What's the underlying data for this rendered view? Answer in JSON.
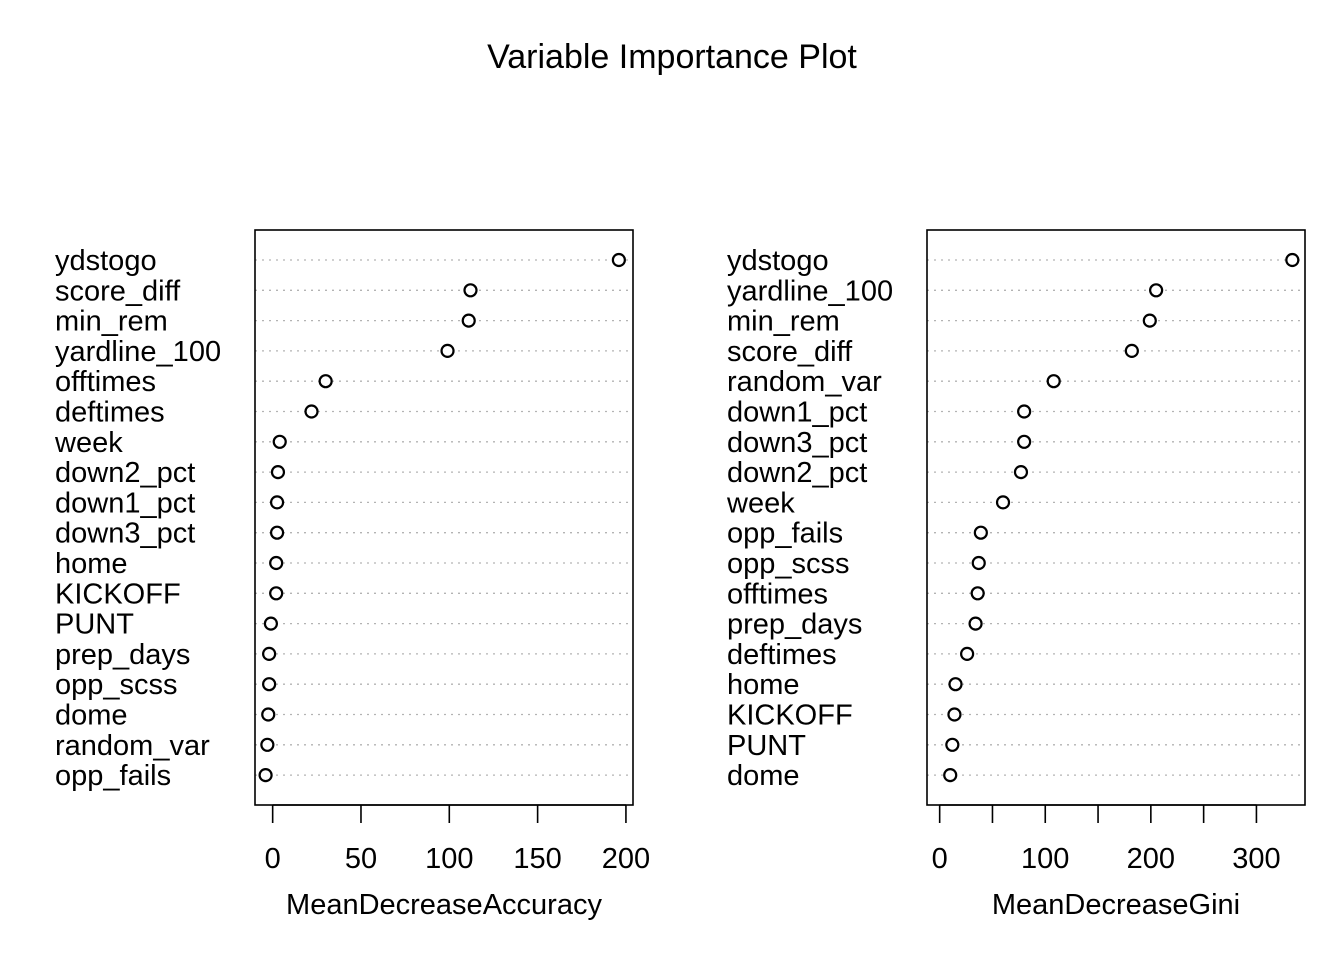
{
  "title": "Variable Importance Plot",
  "chart_data": [
    {
      "type": "scatter",
      "subtype": "dotchart",
      "xlabel": "MeanDecreaseAccuracy",
      "ylabel": "",
      "xlim": [
        -10,
        204
      ],
      "xticks": [
        0,
        50,
        100,
        150,
        200
      ],
      "grid": "dotted-horizontal",
      "points": [
        {
          "label": "ydstogo",
          "value": 196
        },
        {
          "label": "score_diff",
          "value": 112
        },
        {
          "label": "min_rem",
          "value": 111
        },
        {
          "label": "yardline_100",
          "value": 99
        },
        {
          "label": "offtimes",
          "value": 30
        },
        {
          "label": "deftimes",
          "value": 22
        },
        {
          "label": "week",
          "value": 4
        },
        {
          "label": "down2_pct",
          "value": 3
        },
        {
          "label": "down1_pct",
          "value": 2.5
        },
        {
          "label": "down3_pct",
          "value": 2.5
        },
        {
          "label": "home",
          "value": 2
        },
        {
          "label": "KICKOFF",
          "value": 2
        },
        {
          "label": "PUNT",
          "value": -1
        },
        {
          "label": "prep_days",
          "value": -2
        },
        {
          "label": "opp_scss",
          "value": -2
        },
        {
          "label": "dome",
          "value": -2.5
        },
        {
          "label": "random_var",
          "value": -3
        },
        {
          "label": "opp_fails",
          "value": -4
        }
      ]
    },
    {
      "type": "scatter",
      "subtype": "dotchart",
      "xlabel": "MeanDecreaseGini",
      "ylabel": "",
      "xlim": [
        -12,
        346
      ],
      "xticks": [
        0,
        50,
        100,
        150,
        200,
        250,
        300
      ],
      "xtick_labels": [
        "0",
        "",
        "100",
        "",
        "200",
        "",
        "300"
      ],
      "grid": "dotted-horizontal",
      "points": [
        {
          "label": "ydstogo",
          "value": 334
        },
        {
          "label": "yardline_100",
          "value": 205
        },
        {
          "label": "min_rem",
          "value": 199
        },
        {
          "label": "score_diff",
          "value": 182
        },
        {
          "label": "random_var",
          "value": 108
        },
        {
          "label": "down1_pct",
          "value": 80
        },
        {
          "label": "down3_pct",
          "value": 80
        },
        {
          "label": "down2_pct",
          "value": 77
        },
        {
          "label": "week",
          "value": 60
        },
        {
          "label": "opp_fails",
          "value": 39
        },
        {
          "label": "opp_scss",
          "value": 37
        },
        {
          "label": "offtimes",
          "value": 36
        },
        {
          "label": "prep_days",
          "value": 34
        },
        {
          "label": "deftimes",
          "value": 26
        },
        {
          "label": "home",
          "value": 15
        },
        {
          "label": "KICKOFF",
          "value": 14
        },
        {
          "label": "PUNT",
          "value": 12
        },
        {
          "label": "dome",
          "value": 10
        }
      ]
    }
  ]
}
